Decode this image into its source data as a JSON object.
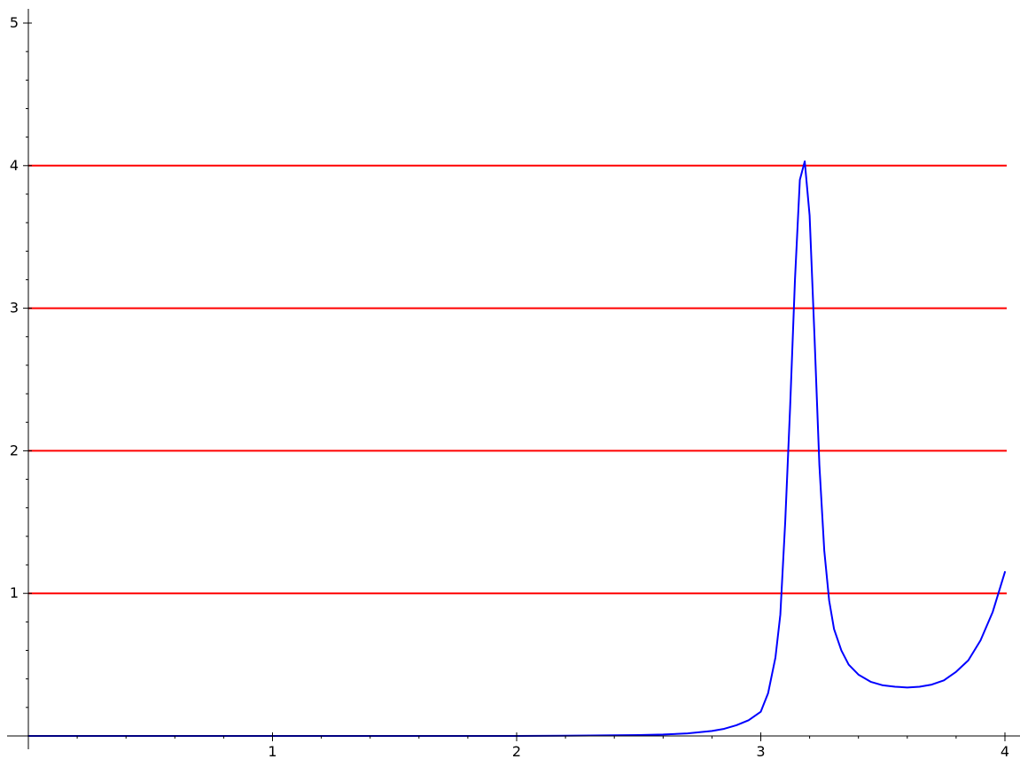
{
  "chart_data": {
    "type": "line",
    "title": "",
    "xlabel": "",
    "ylabel": "",
    "xlim": [
      0,
      4
    ],
    "ylim": [
      0,
      5
    ],
    "grid": false,
    "x_ticks": [
      "1",
      "2",
      "3",
      "4"
    ],
    "y_ticks": [
      "1",
      "2",
      "3",
      "4",
      "5"
    ],
    "reference_lines": [
      {
        "y": 1,
        "color": "#ff0000"
      },
      {
        "y": 2,
        "color": "#ff0000"
      },
      {
        "y": 3,
        "color": "#ff0000"
      },
      {
        "y": 4,
        "color": "#ff0000"
      }
    ],
    "series": [
      {
        "color": "#0000ff",
        "x": [
          0.0,
          0.5,
          1.0,
          1.5,
          2.0,
          2.3,
          2.5,
          2.6,
          2.7,
          2.8,
          2.85,
          2.9,
          2.95,
          3.0,
          3.03,
          3.06,
          3.08,
          3.1,
          3.12,
          3.14,
          3.16,
          3.18,
          3.2,
          3.22,
          3.24,
          3.26,
          3.28,
          3.3,
          3.33,
          3.36,
          3.4,
          3.45,
          3.5,
          3.55,
          3.6,
          3.65,
          3.7,
          3.75,
          3.8,
          3.85,
          3.9,
          3.95,
          4.0
        ],
        "y": [
          0.0,
          0.0,
          0.0,
          0.0,
          0.0,
          0.003,
          0.006,
          0.01,
          0.018,
          0.035,
          0.05,
          0.075,
          0.11,
          0.17,
          0.3,
          0.55,
          0.85,
          1.5,
          2.3,
          3.2,
          3.9,
          4.03,
          3.65,
          2.8,
          1.9,
          1.3,
          0.95,
          0.75,
          0.6,
          0.5,
          0.43,
          0.38,
          0.355,
          0.345,
          0.34,
          0.345,
          0.36,
          0.39,
          0.45,
          0.53,
          0.67,
          0.87,
          1.15
        ]
      }
    ]
  }
}
